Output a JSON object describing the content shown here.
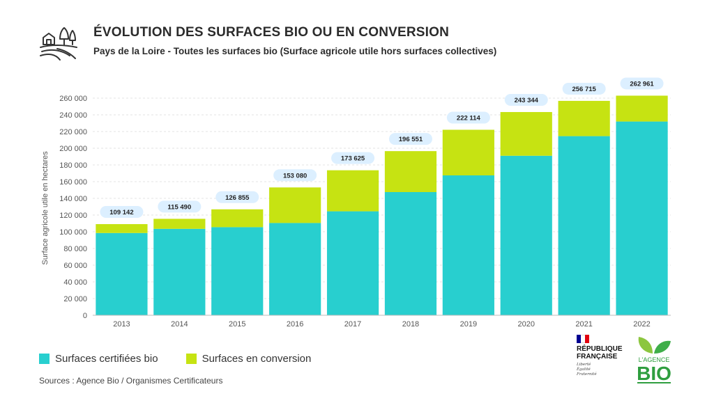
{
  "header": {
    "title": "ÉVOLUTION DES SURFACES BIO OU EN CONVERSION",
    "subtitle": "Pays de la Loire - Toutes les surfaces bio (Surface agricole utile hors surfaces collectives)",
    "icon": "farm-icon"
  },
  "chart_data": {
    "type": "bar",
    "stacked": true,
    "title": "ÉVOLUTION DES SURFACES BIO OU EN CONVERSION",
    "subtitle": "Pays de la Loire - Toutes les surfaces bio (Surface agricole utile hors surfaces collectives)",
    "xlabel": "",
    "ylabel": "Surface agricole utile en hectares",
    "ylim": [
      0,
      260000
    ],
    "yticks": [
      0,
      20000,
      40000,
      60000,
      80000,
      100000,
      120000,
      140000,
      160000,
      180000,
      200000,
      220000,
      240000,
      260000
    ],
    "ytick_labels": [
      "0",
      "20 000",
      "40 000",
      "60 000",
      "80 000",
      "100 000",
      "120 000",
      "140 000",
      "160 000",
      "180 000",
      "200 000",
      "220 000",
      "240 000",
      "260 000"
    ],
    "categories": [
      "2013",
      "2014",
      "2015",
      "2016",
      "2017",
      "2018",
      "2019",
      "2020",
      "2021",
      "2022"
    ],
    "series": [
      {
        "name": "Surfaces certifiées bio",
        "color": "#28cfcf",
        "values": [
          98500,
          103500,
          105500,
          110500,
          124500,
          147500,
          167500,
          191000,
          214500,
          232000
        ]
      },
      {
        "name": "Surfaces en conversion",
        "color": "#c6e312",
        "values": [
          10642,
          11990,
          21355,
          42580,
          49125,
          49051,
          54614,
          52344,
          42215,
          30961
        ]
      }
    ],
    "totals": [
      109142,
      115490,
      126855,
      153080,
      173625,
      196551,
      222114,
      243344,
      256715,
      262961
    ],
    "total_labels": [
      "109 142",
      "115 490",
      "126 855",
      "153 080",
      "173 625",
      "196 551",
      "222 114",
      "243 344",
      "256 715",
      "262 961"
    ],
    "grid": true,
    "legend_position": "bottom-left"
  },
  "legend": {
    "items": [
      {
        "label": "Surfaces certifiées bio",
        "color": "#28cfcf"
      },
      {
        "label": "Surfaces en conversion",
        "color": "#c6e312"
      }
    ]
  },
  "footer": {
    "source": "Sources : Agence Bio / Organismes Certificateurs"
  },
  "logos": {
    "republique": {
      "line1": "RÉPUBLIQUE",
      "line2": "FRANÇAISE",
      "motto1": "Liberté",
      "motto2": "Égalité",
      "motto3": "Fraternité",
      "flag_colors": [
        "#000091",
        "#ffffff",
        "#e1000f"
      ]
    },
    "agence_bio": {
      "line1": "L'AGENCE",
      "line2": "BIO",
      "color": "#2f9e3f"
    }
  }
}
